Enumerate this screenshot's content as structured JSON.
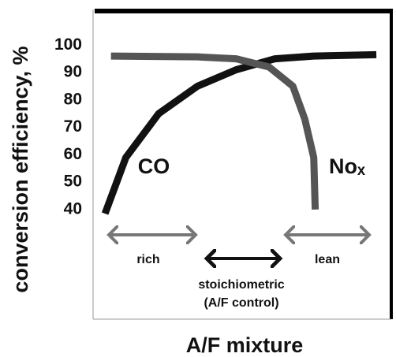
{
  "chart_data": {
    "type": "line",
    "ylabel": "conversion efficiency, %",
    "xlabel": "A/F mixture",
    "xlim": [
      0,
      10
    ],
    "ylim": [
      0,
      113
    ],
    "yticks": [
      40,
      50,
      60,
      70,
      80,
      90,
      100
    ],
    "series": [
      {
        "name": "CO",
        "color": "#111111",
        "x": [
          0.4,
          1.1,
          2.2,
          3.5,
          4.8,
          6.1,
          7.4,
          9.5
        ],
        "values": [
          38.5,
          59,
          75,
          85,
          91,
          95,
          96,
          96.5
        ]
      },
      {
        "name": "Noₓ",
        "color": "#555555",
        "x": [
          0.6,
          3.5,
          4.8,
          5.9,
          6.7,
          7.1,
          7.4,
          7.45
        ],
        "values": [
          96,
          95.7,
          95,
          92,
          85,
          73,
          59,
          40
        ]
      }
    ],
    "annotations": [
      "rich",
      "lean",
      "stoichiometric",
      "(A/F control)"
    ]
  }
}
